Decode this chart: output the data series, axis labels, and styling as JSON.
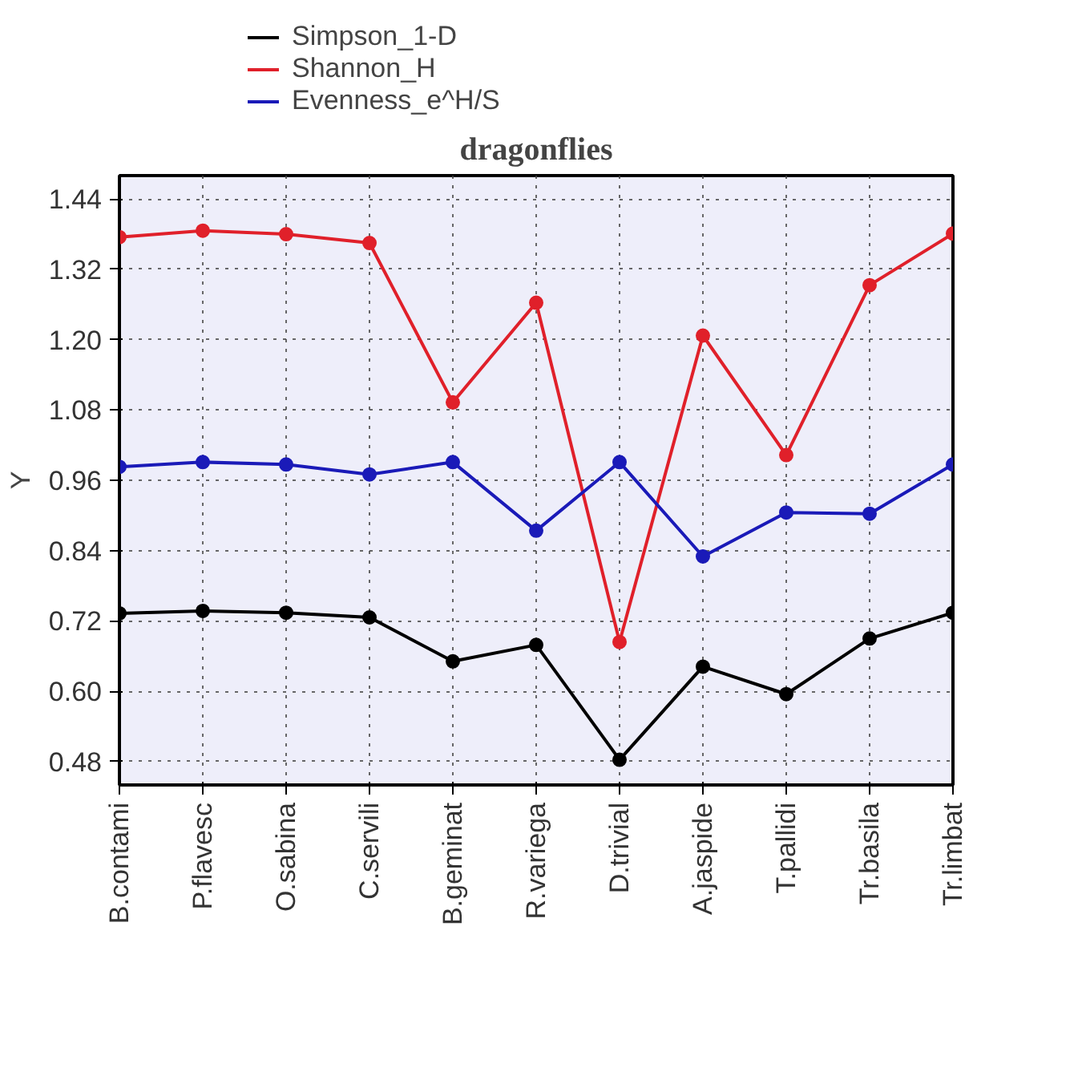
{
  "chart_data": {
    "type": "line",
    "title": "dragonflies",
    "ylabel": "Y",
    "categories": [
      "B.contami",
      "P.flavesc",
      "O.sabina",
      "C.servili",
      "B.geminat",
      "R.variega",
      "D.trivial",
      "A.jaspide",
      "T.pallidi",
      "Tr.basila",
      "Tr.limbat"
    ],
    "series": [
      {
        "name": "Simpson_1-D",
        "color": "#000000",
        "values": [
          0.733,
          0.737,
          0.734,
          0.726,
          0.651,
          0.679,
          0.483,
          0.642,
          0.595,
          0.69,
          0.734
        ]
      },
      {
        "name": "Shannon_H",
        "color": "#e0202a",
        "values": [
          1.375,
          1.386,
          1.38,
          1.365,
          1.093,
          1.263,
          0.684,
          1.207,
          1.003,
          1.293,
          1.381
        ]
      },
      {
        "name": "Evenness_e^H/S",
        "color": "#1a1ab8",
        "values": [
          0.983,
          0.991,
          0.987,
          0.97,
          0.991,
          0.874,
          0.991,
          0.83,
          0.905,
          0.903,
          0.987
        ]
      }
    ],
    "ylim": [
      0.44,
      1.48
    ],
    "yticks": [
      0.48,
      {
        "value": 0.6,
        "label": "0.60"
      },
      0.72,
      0.84,
      0.96,
      1.08,
      {
        "value": 1.2,
        "label": "1.20"
      },
      1.32,
      1.44
    ],
    "grid": true,
    "legend": "top left",
    "marker": "circle",
    "line_style": "solid"
  }
}
